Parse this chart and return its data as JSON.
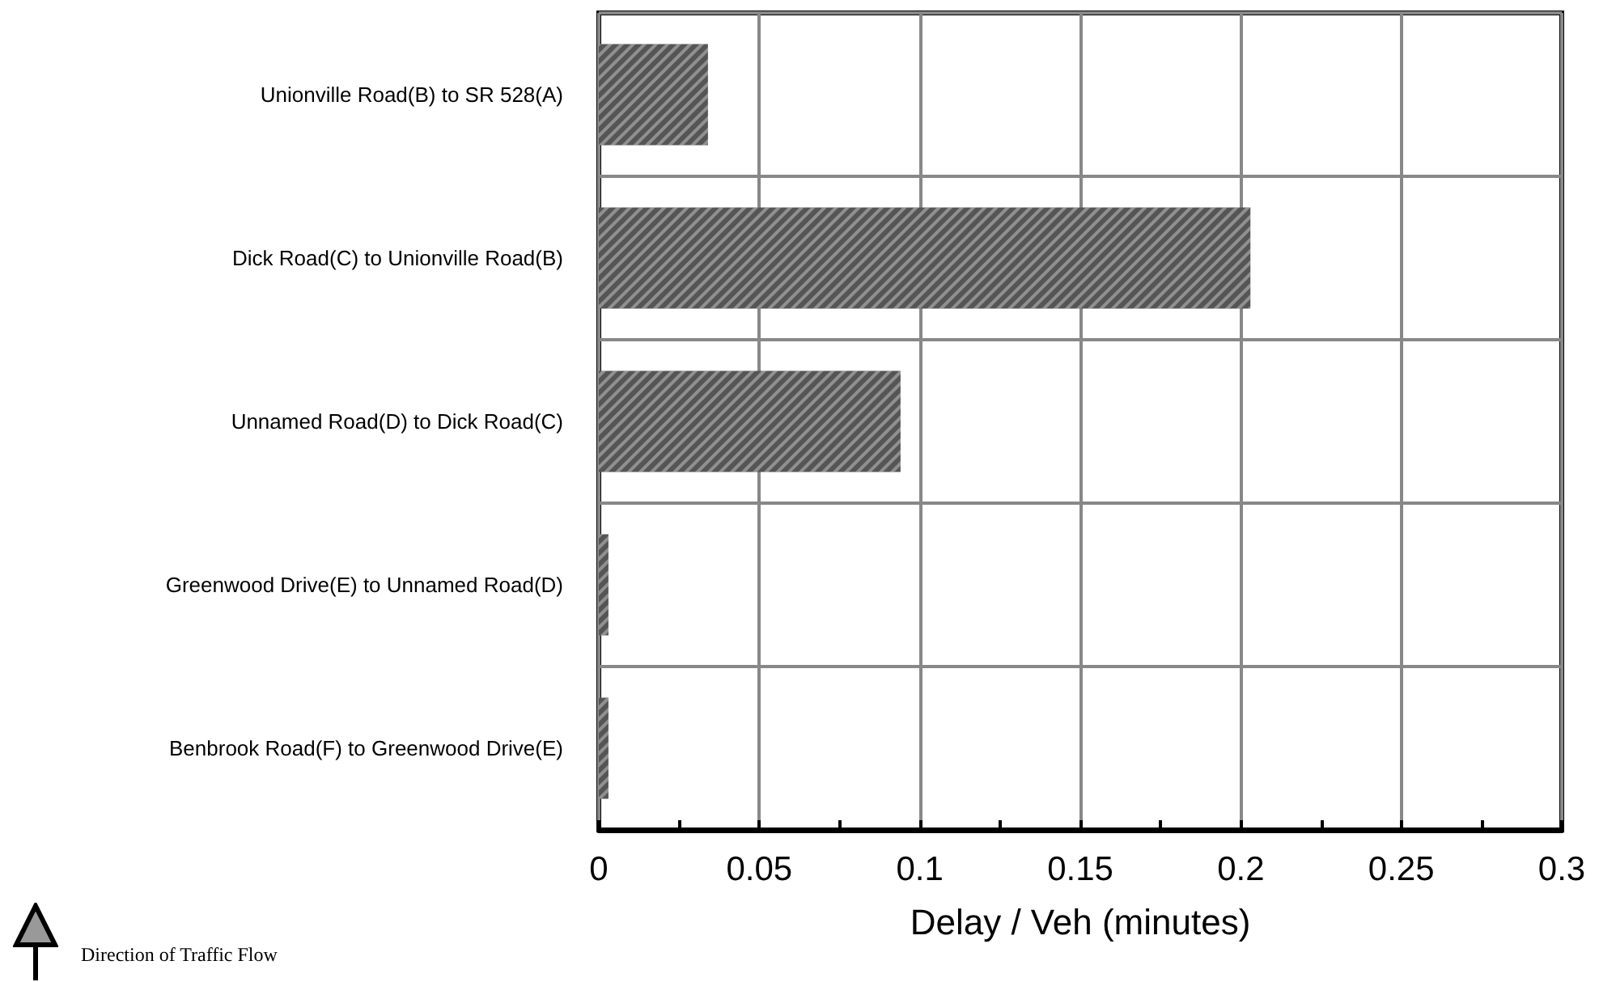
{
  "chart_data": {
    "type": "bar",
    "orientation": "horizontal",
    "xlabel": "Delay / Veh (minutes)",
    "categories": [
      "Unionville Road(B) to SR 528(A)",
      "Dick Road(C) to Unionville Road(B)",
      "Unnamed Road(D) to Dick Road(C)",
      "Greenwood Drive(E) to Unnamed Road(D)",
      "Benbrook Road(F) to Greenwood Drive(E)"
    ],
    "values": [
      0.034,
      0.203,
      0.094,
      0.003,
      0.003
    ],
    "color": "#555555",
    "xlim": [
      0,
      0.3
    ],
    "xticks": [
      0,
      {
        "value": 0.025,
        "label": null
      },
      0.05,
      {
        "value": 0.075,
        "label": null
      },
      0.1,
      {
        "value": 0.125,
        "label": null
      },
      0.15,
      {
        "value": 0.175,
        "label": null
      },
      0.2,
      {
        "value": 0.225,
        "label": null
      },
      0.25,
      {
        "value": 0.275,
        "label": null
      },
      0.3
    ],
    "grid": true,
    "annotations": [
      "Direction of Traffic Flow"
    ]
  }
}
